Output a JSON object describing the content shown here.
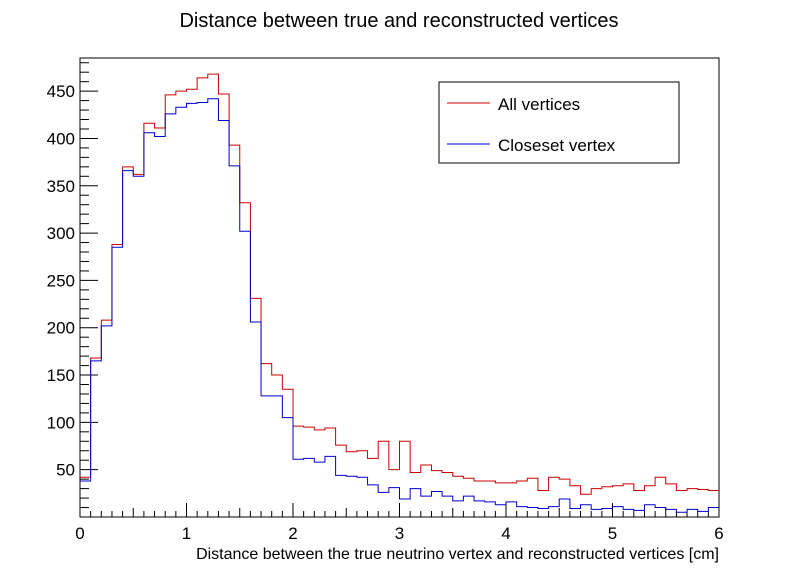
{
  "chart_data": {
    "type": "histogram-step",
    "title": "Distance between true and reconstructed vertices",
    "xlabel": "Distance between the true neutrino vertex and reconstructed vertices [cm]",
    "ylabel": "",
    "xlim": [
      0,
      6
    ],
    "ylim": [
      0,
      485
    ],
    "bin_width": 0.1,
    "x_ticks": [
      0,
      1,
      2,
      3,
      4,
      5,
      6
    ],
    "x_tick_labels": [
      "0",
      "1",
      "2",
      "3",
      "4",
      "5",
      "6"
    ],
    "y_ticks": [
      50,
      100,
      150,
      200,
      250,
      300,
      350,
      400,
      450
    ],
    "y_tick_labels": [
      "50",
      "100",
      "150",
      "200",
      "250",
      "300",
      "350",
      "400",
      "450"
    ],
    "grid": false,
    "legend_position": "top-right",
    "series": [
      {
        "name": "All vertices",
        "color": "#cc0000",
        "values": [
          42,
          168,
          208,
          288,
          370,
          362,
          416,
          411,
          446,
          450,
          452,
          464,
          468,
          447,
          393,
          332,
          231,
          162,
          150,
          135,
          96,
          95,
          92,
          94,
          76,
          69,
          70,
          62,
          80,
          50,
          80,
          47,
          55,
          49,
          47,
          43,
          41,
          38,
          38,
          36,
          36,
          38,
          41,
          28,
          42,
          40,
          33,
          24,
          30,
          32,
          33,
          35,
          28,
          33,
          42,
          35,
          28,
          30,
          29,
          28
        ]
      },
      {
        "name": "Closeset vertex",
        "color": "#0000cc",
        "values": [
          38,
          165,
          202,
          285,
          366,
          360,
          406,
          402,
          426,
          433,
          437,
          438,
          442,
          419,
          371,
          302,
          206,
          128,
          128,
          105,
          61,
          62,
          58,
          64,
          44,
          43,
          42,
          34,
          26,
          31,
          19,
          30,
          22,
          27,
          22,
          17,
          22,
          17,
          16,
          13,
          16,
          11,
          10,
          9,
          11,
          19,
          9,
          13,
          8,
          9,
          11,
          8,
          7,
          13,
          10,
          8,
          5,
          8,
          6,
          10
        ]
      }
    ]
  }
}
